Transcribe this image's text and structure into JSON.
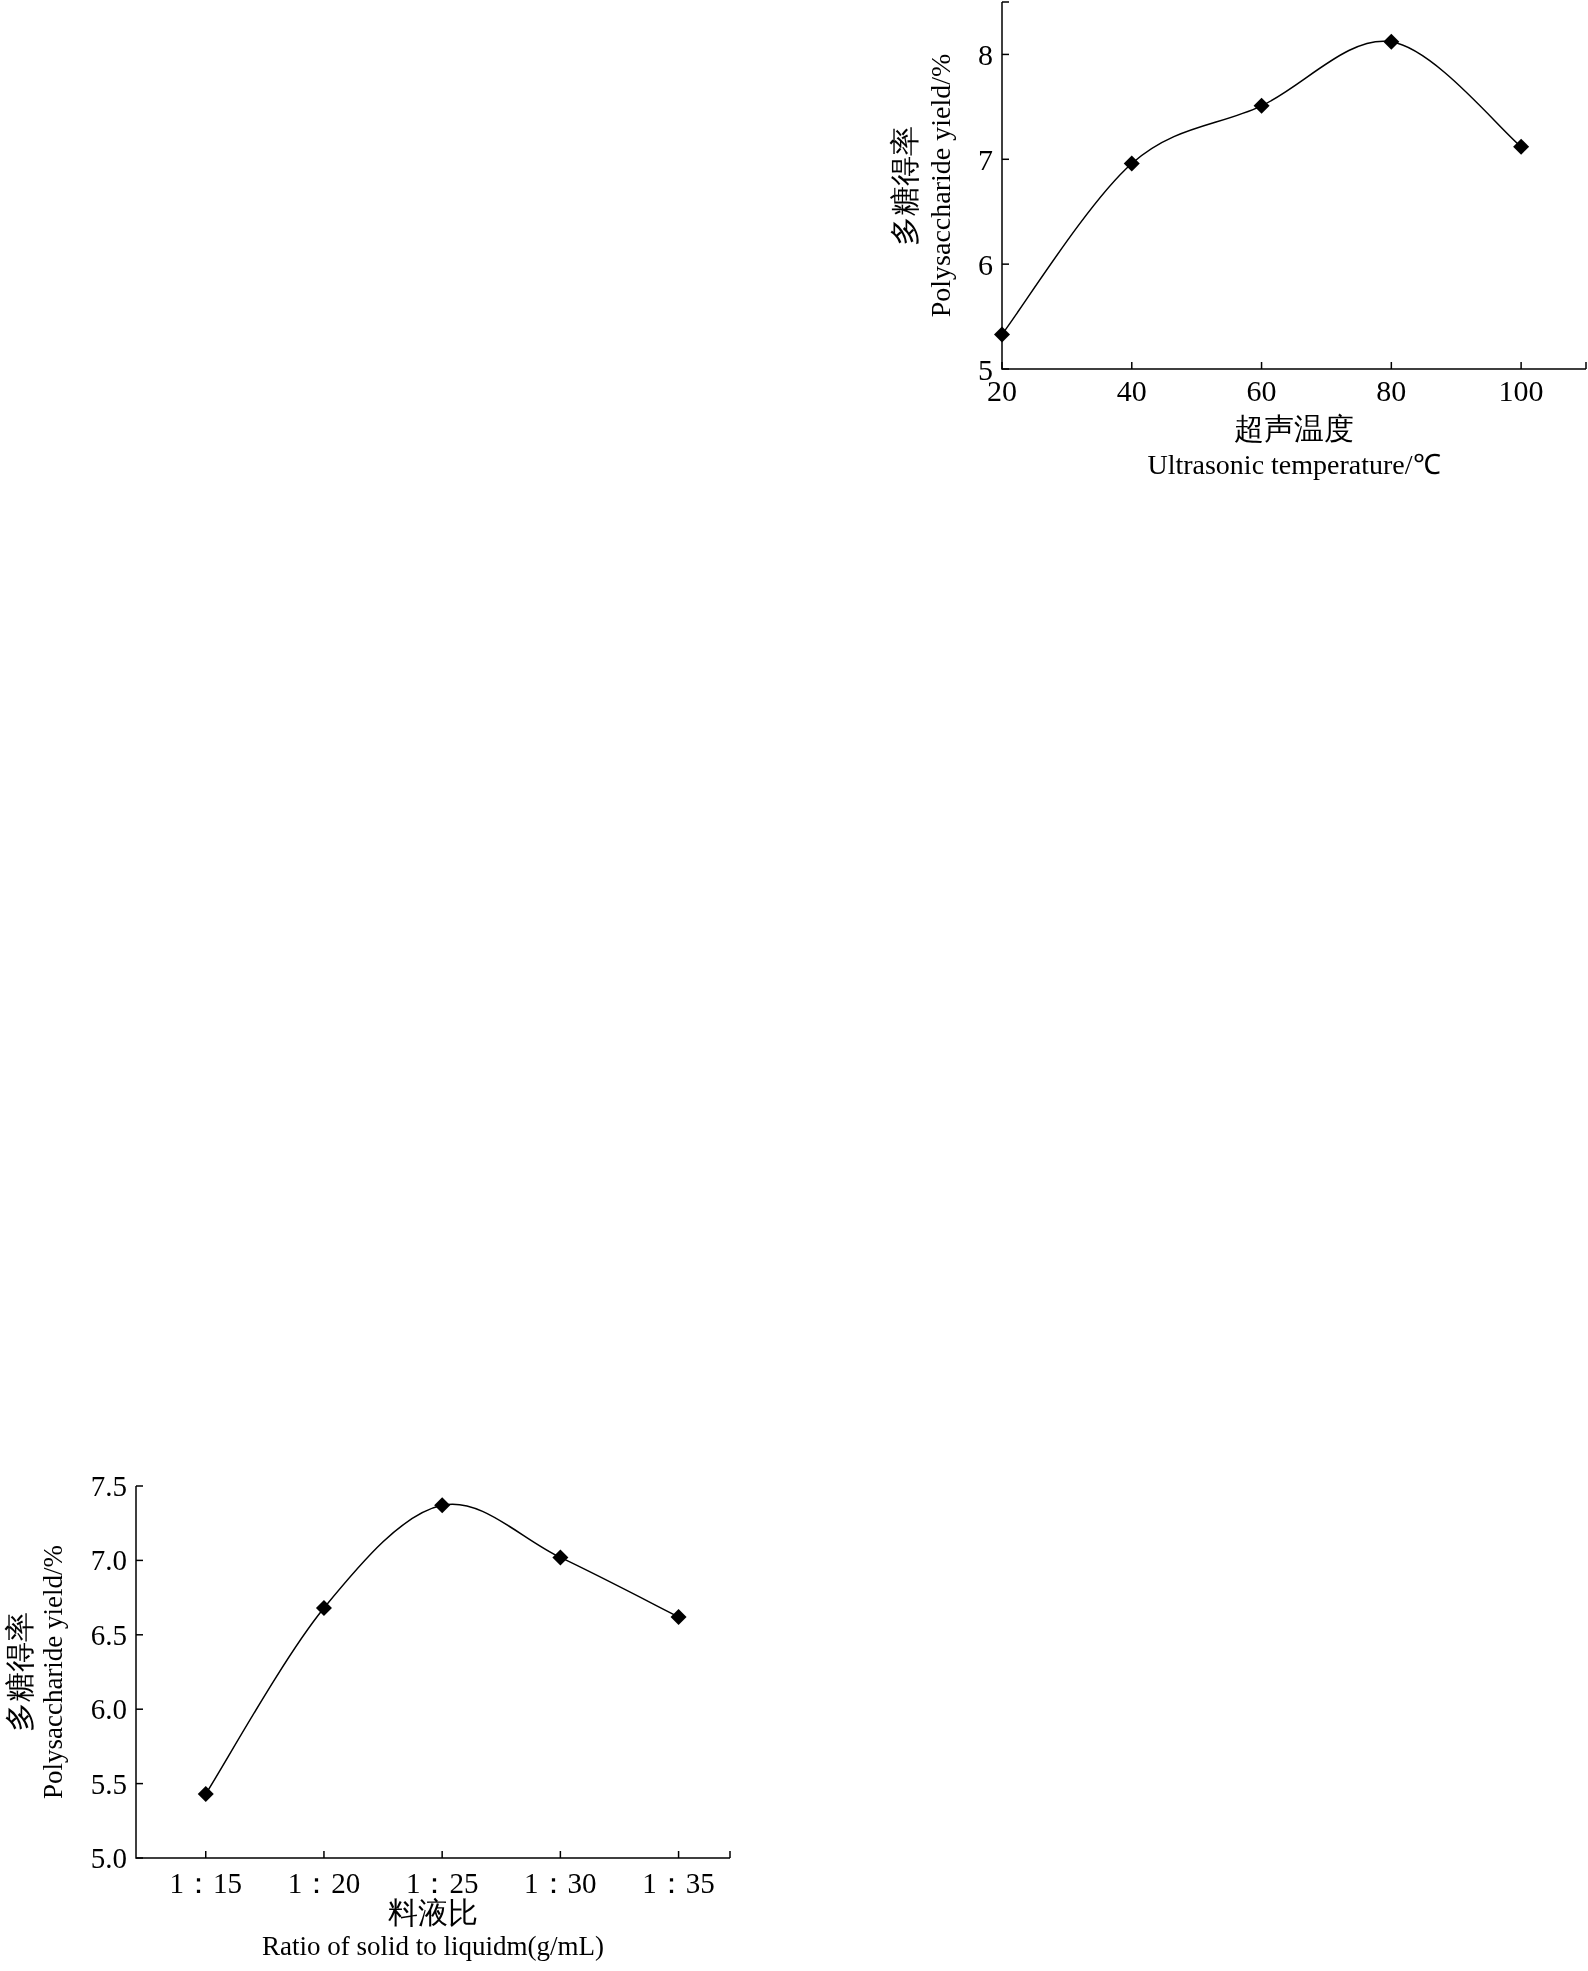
{
  "chart_data": [
    {
      "type": "line",
      "xlabel": "超声温度\nUltrasonic temperature/℃",
      "ylabel": "多糖得率\nPolysaccharide yield/%",
      "x": [
        20,
        40,
        60,
        80,
        100
      ],
      "values": [
        5.33,
        6.96,
        7.51,
        8.12,
        7.12
      ],
      "color": "#000000",
      "marker": "diamond",
      "xlim": [
        20,
        110
      ],
      "xticks": [
        20,
        40,
        60,
        80,
        100,
        {
          "value": 110,
          "label": null
        }
      ],
      "ylim": [
        5,
        8.5
      ],
      "yticks": [
        5,
        6,
        7,
        8,
        {
          "value": 8.5,
          "label": null
        }
      ]
    },
    {
      "type": "line",
      "xlabel": "料液比\nRatio of solid to liquidm(g/mL)",
      "ylabel": "多糖得率\nPolysaccharide yield/%",
      "categories": [
        "1：15",
        "1：20",
        "1：25",
        "1：30",
        "1：35"
      ],
      "values": [
        5.43,
        6.68,
        7.37,
        7.02,
        6.62
      ],
      "color": "#000000",
      "marker": "diamond",
      "ylim": [
        5,
        7.5
      ],
      "yticks": [
        {
          "value": 5,
          "label": "5.0"
        },
        5.5,
        {
          "value": 6,
          "label": "6.0"
        },
        6.5,
        {
          "value": 7,
          "label": "7.0"
        },
        7.5
      ]
    }
  ]
}
